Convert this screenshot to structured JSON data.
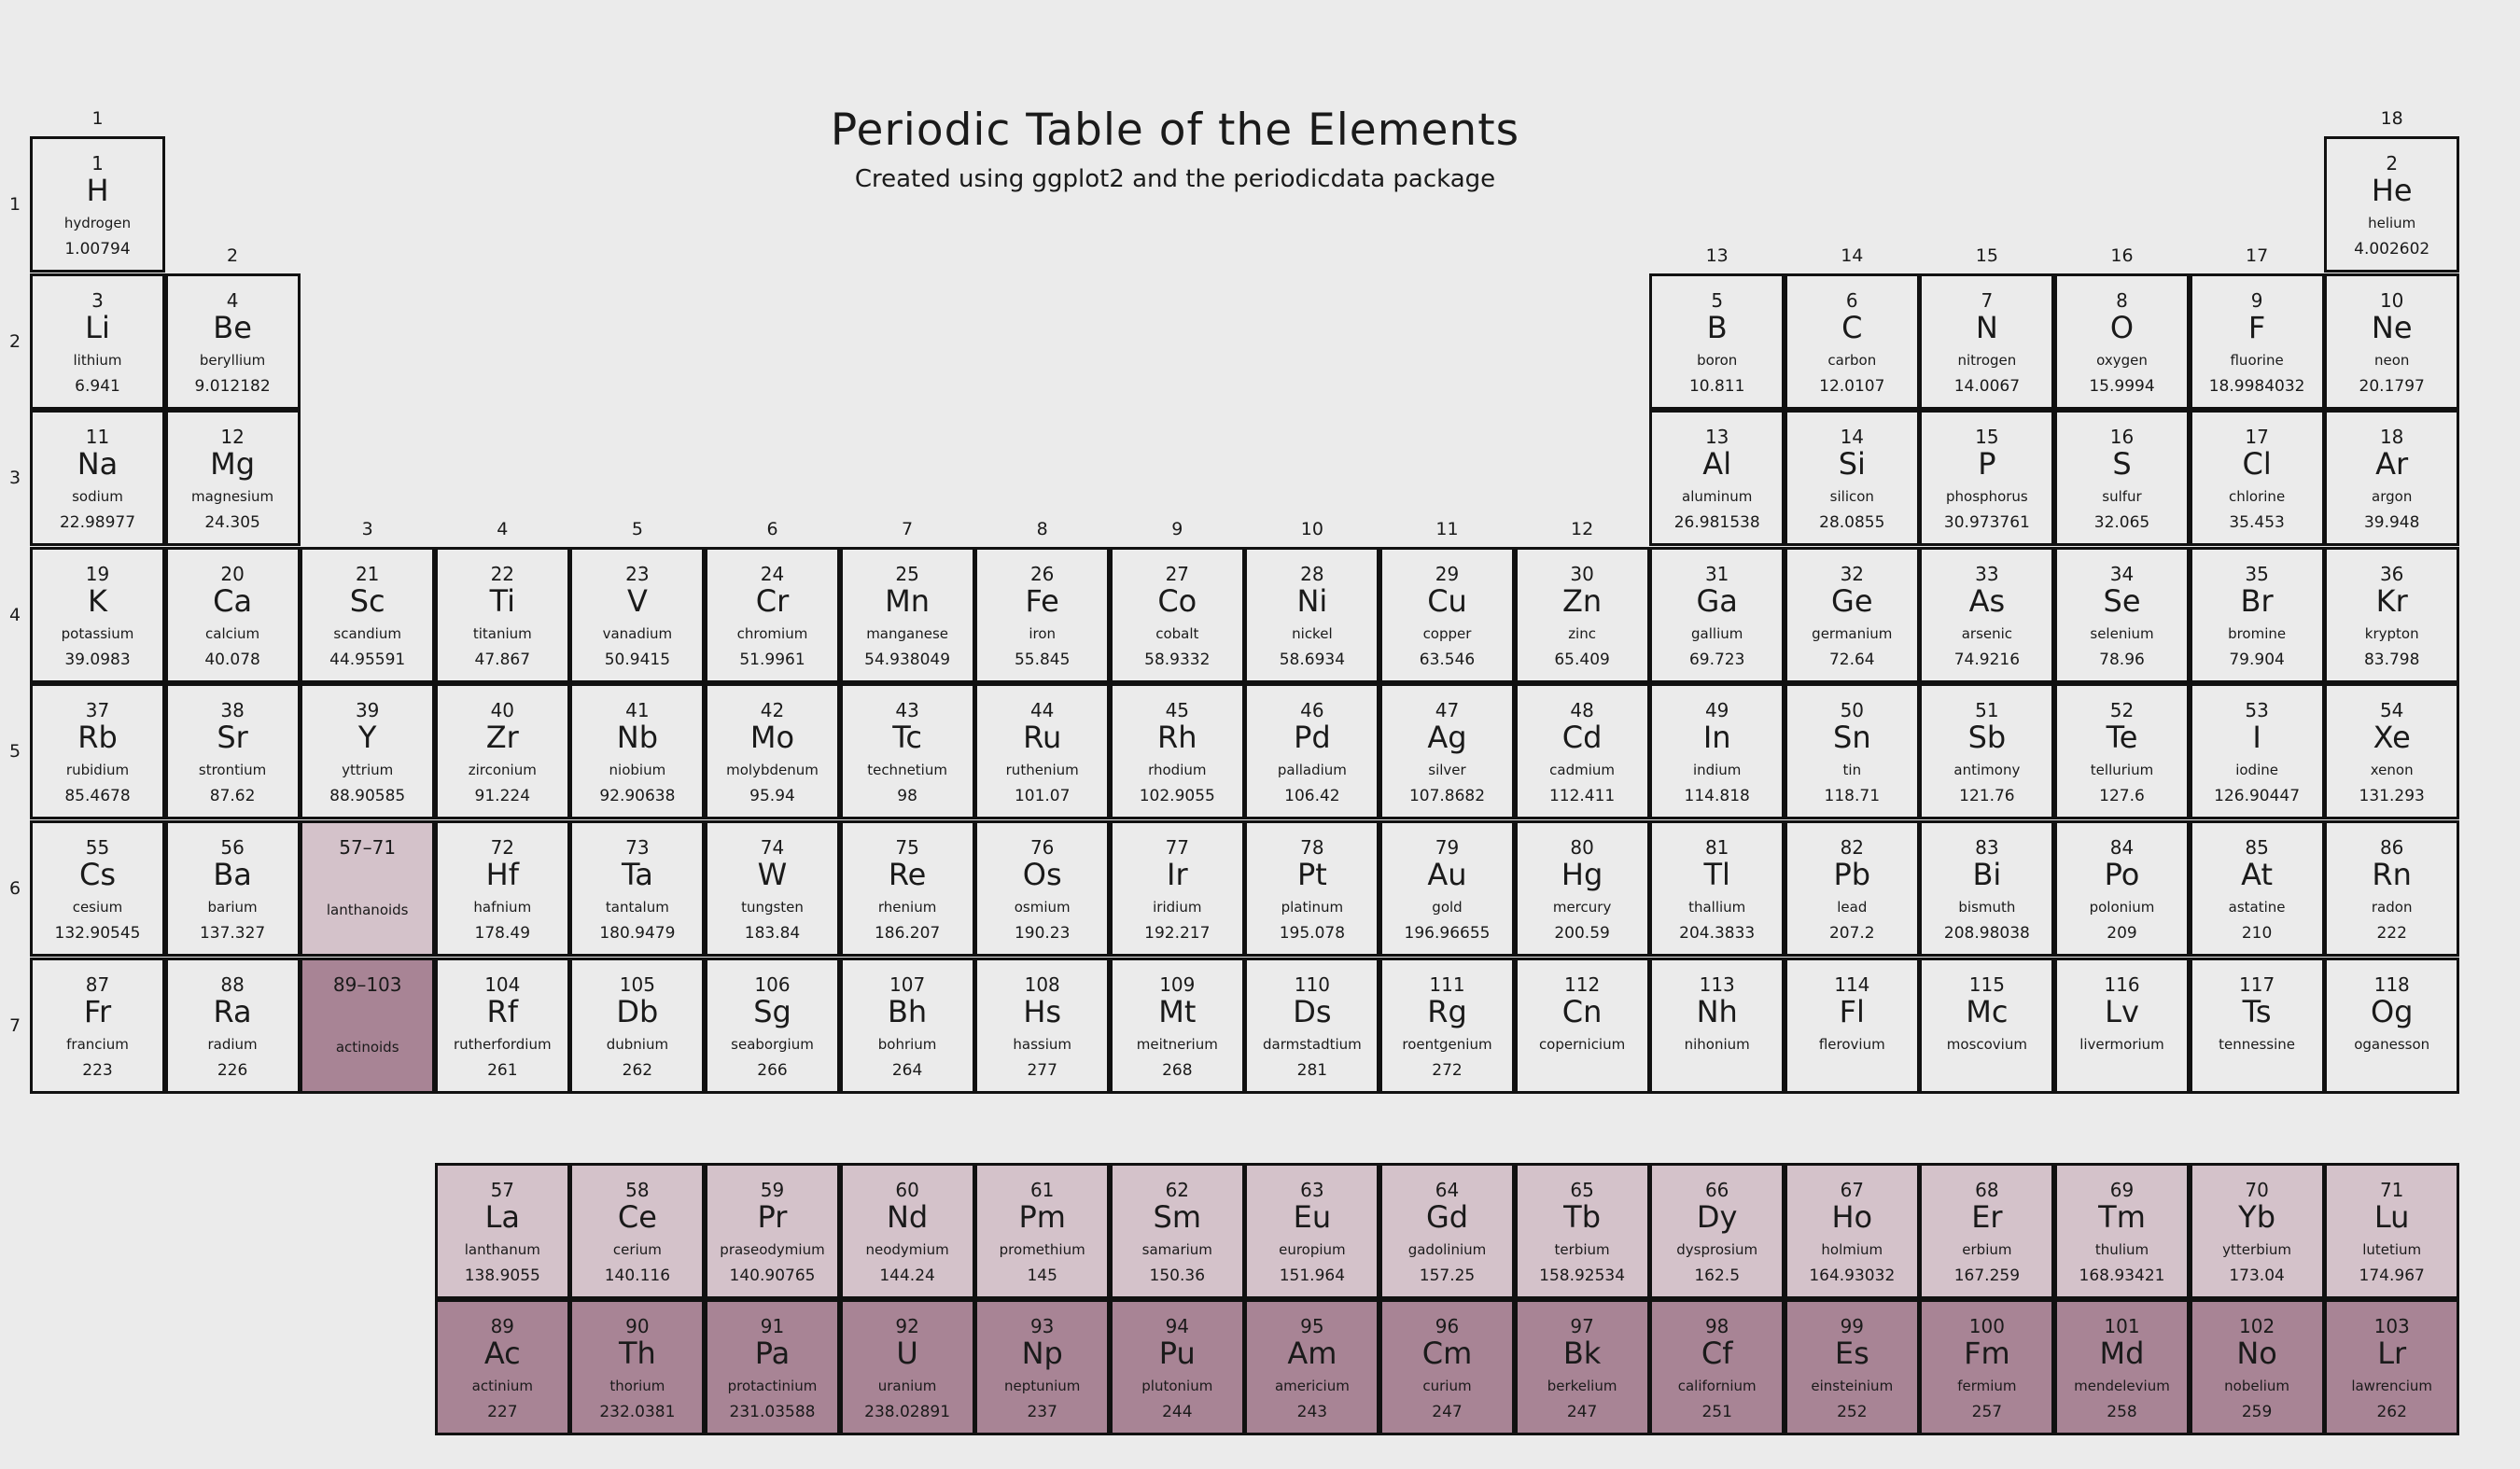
{
  "title": "Periodic Table of the Elements",
  "subtitle": "Created using ggplot2 and the periodicdata package",
  "colors": {
    "background": "#ebebeb",
    "lanthanoid_fill": "#d4c2ca",
    "actinoid_fill": "#a88495",
    "border": "#111111"
  },
  "group_labels": [
    {
      "label": "1",
      "group": 1,
      "above_period": 1
    },
    {
      "label": "2",
      "group": 2,
      "above_period": 2
    },
    {
      "label": "3",
      "group": 3,
      "above_period": 4
    },
    {
      "label": "4",
      "group": 4,
      "above_period": 4
    },
    {
      "label": "5",
      "group": 5,
      "above_period": 4
    },
    {
      "label": "6",
      "group": 6,
      "above_period": 4
    },
    {
      "label": "7",
      "group": 7,
      "above_period": 4
    },
    {
      "label": "8",
      "group": 8,
      "above_period": 4
    },
    {
      "label": "9",
      "group": 9,
      "above_period": 4
    },
    {
      "label": "10",
      "group": 10,
      "above_period": 4
    },
    {
      "label": "11",
      "group": 11,
      "above_period": 4
    },
    {
      "label": "12",
      "group": 12,
      "above_period": 4
    },
    {
      "label": "13",
      "group": 13,
      "above_period": 2
    },
    {
      "label": "14",
      "group": 14,
      "above_period": 2
    },
    {
      "label": "15",
      "group": 15,
      "above_period": 2
    },
    {
      "label": "16",
      "group": 16,
      "above_period": 2
    },
    {
      "label": "17",
      "group": 17,
      "above_period": 2
    },
    {
      "label": "18",
      "group": 18,
      "above_period": 1
    }
  ],
  "period_labels": [
    "1",
    "2",
    "3",
    "4",
    "5",
    "6",
    "7"
  ],
  "elements": [
    {
      "n": "1",
      "s": "H",
      "name": "hydrogen",
      "w": "1.00794",
      "g": 1,
      "p": 1
    },
    {
      "n": "2",
      "s": "He",
      "name": "helium",
      "w": "4.002602",
      "g": 18,
      "p": 1
    },
    {
      "n": "3",
      "s": "Li",
      "name": "lithium",
      "w": "6.941",
      "g": 1,
      "p": 2
    },
    {
      "n": "4",
      "s": "Be",
      "name": "beryllium",
      "w": "9.012182",
      "g": 2,
      "p": 2
    },
    {
      "n": "5",
      "s": "B",
      "name": "boron",
      "w": "10.811",
      "g": 13,
      "p": 2
    },
    {
      "n": "6",
      "s": "C",
      "name": "carbon",
      "w": "12.0107",
      "g": 14,
      "p": 2
    },
    {
      "n": "7",
      "s": "N",
      "name": "nitrogen",
      "w": "14.0067",
      "g": 15,
      "p": 2
    },
    {
      "n": "8",
      "s": "O",
      "name": "oxygen",
      "w": "15.9994",
      "g": 16,
      "p": 2
    },
    {
      "n": "9",
      "s": "F",
      "name": "fluorine",
      "w": "18.9984032",
      "g": 17,
      "p": 2
    },
    {
      "n": "10",
      "s": "Ne",
      "name": "neon",
      "w": "20.1797",
      "g": 18,
      "p": 2
    },
    {
      "n": "11",
      "s": "Na",
      "name": "sodium",
      "w": "22.98977",
      "g": 1,
      "p": 3
    },
    {
      "n": "12",
      "s": "Mg",
      "name": "magnesium",
      "w": "24.305",
      "g": 2,
      "p": 3
    },
    {
      "n": "13",
      "s": "Al",
      "name": "aluminum",
      "w": "26.981538",
      "g": 13,
      "p": 3
    },
    {
      "n": "14",
      "s": "Si",
      "name": "silicon",
      "w": "28.0855",
      "g": 14,
      "p": 3
    },
    {
      "n": "15",
      "s": "P",
      "name": "phosphorus",
      "w": "30.973761",
      "g": 15,
      "p": 3
    },
    {
      "n": "16",
      "s": "S",
      "name": "sulfur",
      "w": "32.065",
      "g": 16,
      "p": 3
    },
    {
      "n": "17",
      "s": "Cl",
      "name": "chlorine",
      "w": "35.453",
      "g": 17,
      "p": 3
    },
    {
      "n": "18",
      "s": "Ar",
      "name": "argon",
      "w": "39.948",
      "g": 18,
      "p": 3
    },
    {
      "n": "19",
      "s": "K",
      "name": "potassium",
      "w": "39.0983",
      "g": 1,
      "p": 4
    },
    {
      "n": "20",
      "s": "Ca",
      "name": "calcium",
      "w": "40.078",
      "g": 2,
      "p": 4
    },
    {
      "n": "21",
      "s": "Sc",
      "name": "scandium",
      "w": "44.95591",
      "g": 3,
      "p": 4
    },
    {
      "n": "22",
      "s": "Ti",
      "name": "titanium",
      "w": "47.867",
      "g": 4,
      "p": 4
    },
    {
      "n": "23",
      "s": "V",
      "name": "vanadium",
      "w": "50.9415",
      "g": 5,
      "p": 4
    },
    {
      "n": "24",
      "s": "Cr",
      "name": "chromium",
      "w": "51.9961",
      "g": 6,
      "p": 4
    },
    {
      "n": "25",
      "s": "Mn",
      "name": "manganese",
      "w": "54.938049",
      "g": 7,
      "p": 4
    },
    {
      "n": "26",
      "s": "Fe",
      "name": "iron",
      "w": "55.845",
      "g": 8,
      "p": 4
    },
    {
      "n": "27",
      "s": "Co",
      "name": "cobalt",
      "w": "58.9332",
      "g": 9,
      "p": 4
    },
    {
      "n": "28",
      "s": "Ni",
      "name": "nickel",
      "w": "58.6934",
      "g": 10,
      "p": 4
    },
    {
      "n": "29",
      "s": "Cu",
      "name": "copper",
      "w": "63.546",
      "g": 11,
      "p": 4
    },
    {
      "n": "30",
      "s": "Zn",
      "name": "zinc",
      "w": "65.409",
      "g": 12,
      "p": 4
    },
    {
      "n": "31",
      "s": "Ga",
      "name": "gallium",
      "w": "69.723",
      "g": 13,
      "p": 4
    },
    {
      "n": "32",
      "s": "Ge",
      "name": "germanium",
      "w": "72.64",
      "g": 14,
      "p": 4
    },
    {
      "n": "33",
      "s": "As",
      "name": "arsenic",
      "w": "74.9216",
      "g": 15,
      "p": 4
    },
    {
      "n": "34",
      "s": "Se",
      "name": "selenium",
      "w": "78.96",
      "g": 16,
      "p": 4
    },
    {
      "n": "35",
      "s": "Br",
      "name": "bromine",
      "w": "79.904",
      "g": 17,
      "p": 4
    },
    {
      "n": "36",
      "s": "Kr",
      "name": "krypton",
      "w": "83.798",
      "g": 18,
      "p": 4
    },
    {
      "n": "37",
      "s": "Rb",
      "name": "rubidium",
      "w": "85.4678",
      "g": 1,
      "p": 5
    },
    {
      "n": "38",
      "s": "Sr",
      "name": "strontium",
      "w": "87.62",
      "g": 2,
      "p": 5
    },
    {
      "n": "39",
      "s": "Y",
      "name": "yttrium",
      "w": "88.90585",
      "g": 3,
      "p": 5
    },
    {
      "n": "40",
      "s": "Zr",
      "name": "zirconium",
      "w": "91.224",
      "g": 4,
      "p": 5
    },
    {
      "n": "41",
      "s": "Nb",
      "name": "niobium",
      "w": "92.90638",
      "g": 5,
      "p": 5
    },
    {
      "n": "42",
      "s": "Mo",
      "name": "molybdenum",
      "w": "95.94",
      "g": 6,
      "p": 5
    },
    {
      "n": "43",
      "s": "Tc",
      "name": "technetium",
      "w": "98",
      "g": 7,
      "p": 5
    },
    {
      "n": "44",
      "s": "Ru",
      "name": "ruthenium",
      "w": "101.07",
      "g": 8,
      "p": 5
    },
    {
      "n": "45",
      "s": "Rh",
      "name": "rhodium",
      "w": "102.9055",
      "g": 9,
      "p": 5
    },
    {
      "n": "46",
      "s": "Pd",
      "name": "palladium",
      "w": "106.42",
      "g": 10,
      "p": 5
    },
    {
      "n": "47",
      "s": "Ag",
      "name": "silver",
      "w": "107.8682",
      "g": 11,
      "p": 5
    },
    {
      "n": "48",
      "s": "Cd",
      "name": "cadmium",
      "w": "112.411",
      "g": 12,
      "p": 5
    },
    {
      "n": "49",
      "s": "In",
      "name": "indium",
      "w": "114.818",
      "g": 13,
      "p": 5
    },
    {
      "n": "50",
      "s": "Sn",
      "name": "tin",
      "w": "118.71",
      "g": 14,
      "p": 5
    },
    {
      "n": "51",
      "s": "Sb",
      "name": "antimony",
      "w": "121.76",
      "g": 15,
      "p": 5
    },
    {
      "n": "52",
      "s": "Te",
      "name": "tellurium",
      "w": "127.6",
      "g": 16,
      "p": 5
    },
    {
      "n": "53",
      "s": "I",
      "name": "iodine",
      "w": "126.90447",
      "g": 17,
      "p": 5
    },
    {
      "n": "54",
      "s": "Xe",
      "name": "xenon",
      "w": "131.293",
      "g": 18,
      "p": 5
    },
    {
      "n": "55",
      "s": "Cs",
      "name": "cesium",
      "w": "132.90545",
      "g": 1,
      "p": 6
    },
    {
      "n": "56",
      "s": "Ba",
      "name": "barium",
      "w": "137.327",
      "g": 2,
      "p": 6
    },
    {
      "n": "57–71",
      "s": "",
      "name": "lanthanoids",
      "w": "",
      "g": 3,
      "p": 6,
      "type": "lan",
      "placeholder": true
    },
    {
      "n": "72",
      "s": "Hf",
      "name": "hafnium",
      "w": "178.49",
      "g": 4,
      "p": 6
    },
    {
      "n": "73",
      "s": "Ta",
      "name": "tantalum",
      "w": "180.9479",
      "g": 5,
      "p": 6
    },
    {
      "n": "74",
      "s": "W",
      "name": "tungsten",
      "w": "183.84",
      "g": 6,
      "p": 6
    },
    {
      "n": "75",
      "s": "Re",
      "name": "rhenium",
      "w": "186.207",
      "g": 7,
      "p": 6
    },
    {
      "n": "76",
      "s": "Os",
      "name": "osmium",
      "w": "190.23",
      "g": 8,
      "p": 6
    },
    {
      "n": "77",
      "s": "Ir",
      "name": "iridium",
      "w": "192.217",
      "g": 9,
      "p": 6
    },
    {
      "n": "78",
      "s": "Pt",
      "name": "platinum",
      "w": "195.078",
      "g": 10,
      "p": 6
    },
    {
      "n": "79",
      "s": "Au",
      "name": "gold",
      "w": "196.96655",
      "g": 11,
      "p": 6
    },
    {
      "n": "80",
      "s": "Hg",
      "name": "mercury",
      "w": "200.59",
      "g": 12,
      "p": 6
    },
    {
      "n": "81",
      "s": "Tl",
      "name": "thallium",
      "w": "204.3833",
      "g": 13,
      "p": 6
    },
    {
      "n": "82",
      "s": "Pb",
      "name": "lead",
      "w": "207.2",
      "g": 14,
      "p": 6
    },
    {
      "n": "83",
      "s": "Bi",
      "name": "bismuth",
      "w": "208.98038",
      "g": 15,
      "p": 6
    },
    {
      "n": "84",
      "s": "Po",
      "name": "polonium",
      "w": "209",
      "g": 16,
      "p": 6
    },
    {
      "n": "85",
      "s": "At",
      "name": "astatine",
      "w": "210",
      "g": 17,
      "p": 6
    },
    {
      "n": "86",
      "s": "Rn",
      "name": "radon",
      "w": "222",
      "g": 18,
      "p": 6
    },
    {
      "n": "87",
      "s": "Fr",
      "name": "francium",
      "w": "223",
      "g": 1,
      "p": 7
    },
    {
      "n": "88",
      "s": "Ra",
      "name": "radium",
      "w": "226",
      "g": 2,
      "p": 7
    },
    {
      "n": "89–103",
      "s": "",
      "name": "actinoids",
      "w": "",
      "g": 3,
      "p": 7,
      "type": "act",
      "placeholder": true
    },
    {
      "n": "104",
      "s": "Rf",
      "name": "rutherfordium",
      "w": "261",
      "g": 4,
      "p": 7
    },
    {
      "n": "105",
      "s": "Db",
      "name": "dubnium",
      "w": "262",
      "g": 5,
      "p": 7
    },
    {
      "n": "106",
      "s": "Sg",
      "name": "seaborgium",
      "w": "266",
      "g": 6,
      "p": 7
    },
    {
      "n": "107",
      "s": "Bh",
      "name": "bohrium",
      "w": "264",
      "g": 7,
      "p": 7
    },
    {
      "n": "108",
      "s": "Hs",
      "name": "hassium",
      "w": "277",
      "g": 8,
      "p": 7
    },
    {
      "n": "109",
      "s": "Mt",
      "name": "meitnerium",
      "w": "268",
      "g": 9,
      "p": 7
    },
    {
      "n": "110",
      "s": "Ds",
      "name": "darmstadtium",
      "w": "281",
      "g": 10,
      "p": 7
    },
    {
      "n": "111",
      "s": "Rg",
      "name": "roentgenium",
      "w": "272",
      "g": 11,
      "p": 7
    },
    {
      "n": "112",
      "s": "Cn",
      "name": "copernicium",
      "w": "",
      "g": 12,
      "p": 7
    },
    {
      "n": "113",
      "s": "Nh",
      "name": "nihonium",
      "w": "",
      "g": 13,
      "p": 7
    },
    {
      "n": "114",
      "s": "Fl",
      "name": "flerovium",
      "w": "",
      "g": 14,
      "p": 7
    },
    {
      "n": "115",
      "s": "Mc",
      "name": "moscovium",
      "w": "",
      "g": 15,
      "p": 7
    },
    {
      "n": "116",
      "s": "Lv",
      "name": "livermorium",
      "w": "",
      "g": 16,
      "p": 7
    },
    {
      "n": "117",
      "s": "Ts",
      "name": "tennessine",
      "w": "",
      "g": 17,
      "p": 7
    },
    {
      "n": "118",
      "s": "Og",
      "name": "oganesson",
      "w": "",
      "g": 18,
      "p": 7
    },
    {
      "n": "57",
      "s": "La",
      "name": "lanthanum",
      "w": "138.9055",
      "g": 4,
      "p": 8,
      "type": "lan"
    },
    {
      "n": "58",
      "s": "Ce",
      "name": "cerium",
      "w": "140.116",
      "g": 5,
      "p": 8,
      "type": "lan"
    },
    {
      "n": "59",
      "s": "Pr",
      "name": "praseodymium",
      "w": "140.90765",
      "g": 6,
      "p": 8,
      "type": "lan"
    },
    {
      "n": "60",
      "s": "Nd",
      "name": "neodymium",
      "w": "144.24",
      "g": 7,
      "p": 8,
      "type": "lan"
    },
    {
      "n": "61",
      "s": "Pm",
      "name": "promethium",
      "w": "145",
      "g": 8,
      "p": 8,
      "type": "lan"
    },
    {
      "n": "62",
      "s": "Sm",
      "name": "samarium",
      "w": "150.36",
      "g": 9,
      "p": 8,
      "type": "lan"
    },
    {
      "n": "63",
      "s": "Eu",
      "name": "europium",
      "w": "151.964",
      "g": 10,
      "p": 8,
      "type": "lan"
    },
    {
      "n": "64",
      "s": "Gd",
      "name": "gadolinium",
      "w": "157.25",
      "g": 11,
      "p": 8,
      "type": "lan"
    },
    {
      "n": "65",
      "s": "Tb",
      "name": "terbium",
      "w": "158.92534",
      "g": 12,
      "p": 8,
      "type": "lan"
    },
    {
      "n": "66",
      "s": "Dy",
      "name": "dysprosium",
      "w": "162.5",
      "g": 13,
      "p": 8,
      "type": "lan"
    },
    {
      "n": "67",
      "s": "Ho",
      "name": "holmium",
      "w": "164.93032",
      "g": 14,
      "p": 8,
      "type": "lan"
    },
    {
      "n": "68",
      "s": "Er",
      "name": "erbium",
      "w": "167.259",
      "g": 15,
      "p": 8,
      "type": "lan"
    },
    {
      "n": "69",
      "s": "Tm",
      "name": "thulium",
      "w": "168.93421",
      "g": 16,
      "p": 8,
      "type": "lan"
    },
    {
      "n": "70",
      "s": "Yb",
      "name": "ytterbium",
      "w": "173.04",
      "g": 17,
      "p": 8,
      "type": "lan"
    },
    {
      "n": "71",
      "s": "Lu",
      "name": "lutetium",
      "w": "174.967",
      "g": 18,
      "p": 8,
      "type": "lan"
    },
    {
      "n": "89",
      "s": "Ac",
      "name": "actinium",
      "w": "227",
      "g": 4,
      "p": 9,
      "type": "act"
    },
    {
      "n": "90",
      "s": "Th",
      "name": "thorium",
      "w": "232.0381",
      "g": 5,
      "p": 9,
      "type": "act"
    },
    {
      "n": "91",
      "s": "Pa",
      "name": "protactinium",
      "w": "231.03588",
      "g": 6,
      "p": 9,
      "type": "act"
    },
    {
      "n": "92",
      "s": "U",
      "name": "uranium",
      "w": "238.02891",
      "g": 7,
      "p": 9,
      "type": "act"
    },
    {
      "n": "93",
      "s": "Np",
      "name": "neptunium",
      "w": "237",
      "g": 8,
      "p": 9,
      "type": "act"
    },
    {
      "n": "94",
      "s": "Pu",
      "name": "plutonium",
      "w": "244",
      "g": 9,
      "p": 9,
      "type": "act"
    },
    {
      "n": "95",
      "s": "Am",
      "name": "americium",
      "w": "243",
      "g": 10,
      "p": 9,
      "type": "act"
    },
    {
      "n": "96",
      "s": "Cm",
      "name": "curium",
      "w": "247",
      "g": 11,
      "p": 9,
      "type": "act"
    },
    {
      "n": "97",
      "s": "Bk",
      "name": "berkelium",
      "w": "247",
      "g": 12,
      "p": 9,
      "type": "act"
    },
    {
      "n": "98",
      "s": "Cf",
      "name": "californium",
      "w": "251",
      "g": 13,
      "p": 9,
      "type": "act"
    },
    {
      "n": "99",
      "s": "Es",
      "name": "einsteinium",
      "w": "252",
      "g": 14,
      "p": 9,
      "type": "act"
    },
    {
      "n": "100",
      "s": "Fm",
      "name": "fermium",
      "w": "257",
      "g": 15,
      "p": 9,
      "type": "act"
    },
    {
      "n": "101",
      "s": "Md",
      "name": "mendelevium",
      "w": "258",
      "g": 16,
      "p": 9,
      "type": "act"
    },
    {
      "n": "102",
      "s": "No",
      "name": "nobelium",
      "w": "259",
      "g": 17,
      "p": 9,
      "type": "act"
    },
    {
      "n": "103",
      "s": "Lr",
      "name": "lawrencium",
      "w": "262",
      "g": 18,
      "p": 9,
      "type": "act"
    }
  ]
}
